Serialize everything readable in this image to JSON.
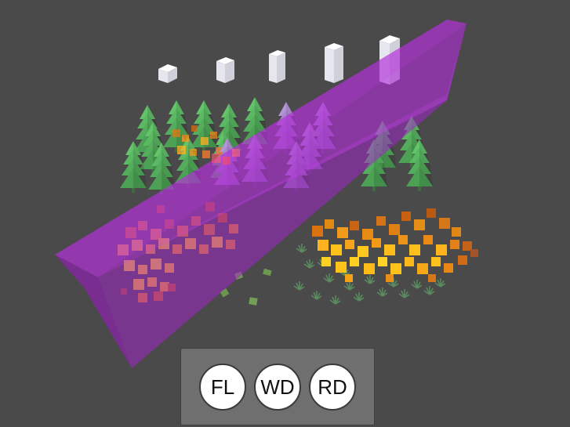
{
  "scene": {
    "name": "wildfire-simulation-viewport",
    "colors": {
      "background": "#4a4a4a",
      "tree_green": "#57b35f",
      "tree_purple": "#a07fc4",
      "fire_orange": "#e08a14",
      "fire_yellow": "#ffc21a",
      "volume_magenta": "#b02bd6",
      "grass": "#4f7a55",
      "block_white": "#f2f2f7"
    }
  },
  "toolbar": {
    "buttons": [
      {
        "key": "fl",
        "label": "FL"
      },
      {
        "key": "wd",
        "label": "WD"
      },
      {
        "key": "rd",
        "label": "RD"
      }
    ]
  }
}
